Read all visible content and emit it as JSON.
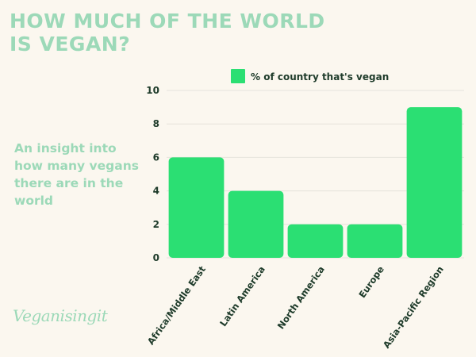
{
  "title_line1": "HOW MUCH OF THE WORLD",
  "title_line2": "IS VEGAN?",
  "subtitle": "An insight into how many vegans there are in the world",
  "logo_text": "Veganisingit",
  "colors": {
    "bar": "#2bdf73",
    "title": "#9cd9b8",
    "grid": "#e6e3dc",
    "text": "#1e3b2a",
    "background": "#fbf7ef"
  },
  "chart_data": {
    "type": "bar",
    "categories": [
      "Africa/Middle East",
      "Latin America",
      "North America",
      "Europe",
      "Asia-Pacific Region"
    ],
    "series": [
      {
        "name": "% of country that's vegan",
        "values": [
          6,
          4,
          2,
          2,
          9
        ]
      }
    ],
    "yticks": [
      "0",
      "2",
      "4",
      "6",
      "8",
      "10"
    ],
    "ylim": [
      0,
      10
    ],
    "grid": true,
    "legend_position": "top"
  }
}
